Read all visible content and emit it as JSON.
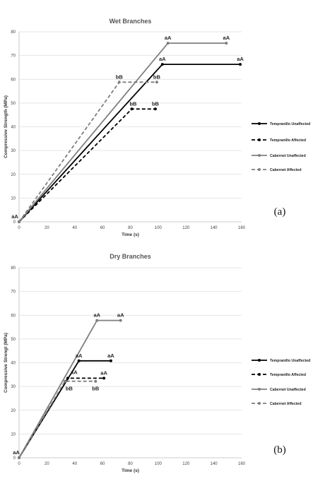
{
  "chart_data": [
    {
      "type": "line",
      "title": "Wet Branches",
      "xlabel": "Time (s)",
      "ylabel": "Compressive Strength (MPa)",
      "xlim": [
        0,
        160
      ],
      "ylim": [
        0,
        80
      ],
      "xticks": [
        "0",
        "20",
        "40",
        "60",
        "80",
        "100",
        "120",
        "140",
        "160"
      ],
      "yticks": [
        "0",
        "10",
        "20",
        "30",
        "40",
        "50",
        "60",
        "70",
        "80"
      ],
      "grid": true,
      "legend": "right",
      "panel_label": "(a)",
      "series": [
        {
          "name": "Tempranillo Unaffected",
          "color": "#000000",
          "dash": false,
          "x": [
            0,
            103,
            159
          ],
          "y": [
            0,
            66.3,
            66.3
          ]
        },
        {
          "name": "Tempranillo Affected",
          "color": "#000000",
          "dash": true,
          "x": [
            0,
            81,
            98
          ],
          "y": [
            0,
            47.5,
            47.5
          ]
        },
        {
          "name": "Cabernet Unaffected",
          "color": "#7f7f7f",
          "dash": false,
          "x": [
            0,
            107,
            149
          ],
          "y": [
            0,
            75.2,
            75.2
          ]
        },
        {
          "name": "Cabernet Affected",
          "color": "#7f7f7f",
          "dash": true,
          "x": [
            0,
            72,
            99
          ],
          "y": [
            0,
            58.8,
            58.8
          ]
        }
      ],
      "annotations": [
        {
          "text": "aA",
          "x": 0,
          "y": 0,
          "dx": -6,
          "dy": -5
        },
        {
          "text": "aA",
          "x": 103,
          "y": 66.3,
          "dx": 0,
          "dy": -5
        },
        {
          "text": "aA",
          "x": 159,
          "y": 66.3,
          "dx": 0,
          "dy": -5
        },
        {
          "text": "aA",
          "x": 107,
          "y": 75.2,
          "dx": 0,
          "dy": -5
        },
        {
          "text": "aA",
          "x": 149,
          "y": 75.2,
          "dx": 0,
          "dy": -5
        },
        {
          "text": "bB",
          "x": 72,
          "y": 58.8,
          "dx": 0,
          "dy": -5
        },
        {
          "text": "bB",
          "x": 99,
          "y": 58.8,
          "dx": 0,
          "dy": -5
        },
        {
          "text": "bB",
          "x": 81,
          "y": 47.5,
          "dx": 2,
          "dy": -5
        },
        {
          "text": "bB",
          "x": 98,
          "y": 47.5,
          "dx": 0,
          "dy": -5
        }
      ]
    },
    {
      "type": "line",
      "title": "Dry Branches",
      "xlabel": "Time (s)",
      "ylabel": "Compressive Strengt (MPa)",
      "xlim": [
        0,
        160
      ],
      "ylim": [
        0,
        80
      ],
      "xticks": [
        "0",
        "20",
        "40",
        "60",
        "80",
        "100",
        "120",
        "140",
        "160"
      ],
      "yticks": [
        "0",
        "10",
        "20",
        "30",
        "40",
        "50",
        "60",
        "70",
        "80"
      ],
      "grid": true,
      "legend": "right",
      "panel_label": "(b)",
      "series": [
        {
          "name": "Tempranillo Unaffected",
          "color": "#000000",
          "dash": false,
          "x": [
            0,
            43,
            66
          ],
          "y": [
            0,
            40.8,
            40.8
          ]
        },
        {
          "name": "Tempranillo Affected",
          "color": "#000000",
          "dash": true,
          "x": [
            0,
            35,
            61
          ],
          "y": [
            0,
            33.5,
            33.5
          ]
        },
        {
          "name": "Cabernet Unaffected",
          "color": "#7f7f7f",
          "dash": false,
          "x": [
            0,
            56,
            73
          ],
          "y": [
            0,
            57.8,
            57.8
          ]
        },
        {
          "name": "Cabernet Affected",
          "color": "#7f7f7f",
          "dash": true,
          "x": [
            0,
            33,
            55
          ],
          "y": [
            0,
            32.2,
            32.2
          ]
        }
      ],
      "annotations": [
        {
          "text": "aA",
          "x": 0,
          "y": 0,
          "dx": -4,
          "dy": -5
        },
        {
          "text": "aA",
          "x": 43,
          "y": 40.8,
          "dx": 0,
          "dy": -5
        },
        {
          "text": "aA",
          "x": 66,
          "y": 40.8,
          "dx": 0,
          "dy": -5
        },
        {
          "text": "aA",
          "x": 56,
          "y": 57.8,
          "dx": 0,
          "dy": -5
        },
        {
          "text": "aA",
          "x": 73,
          "y": 57.8,
          "dx": 0,
          "dy": -5
        },
        {
          "text": "aA",
          "x": 37,
          "y": 33.5,
          "dx": 5,
          "dy": -6
        },
        {
          "text": "aA",
          "x": 61,
          "y": 33.5,
          "dx": 0,
          "dy": -5
        },
        {
          "text": "bB",
          "x": 35,
          "y": 32.2,
          "dx": 2,
          "dy": 13
        },
        {
          "text": "bB",
          "x": 55,
          "y": 32.2,
          "dx": 0,
          "dy": 13
        }
      ]
    }
  ]
}
